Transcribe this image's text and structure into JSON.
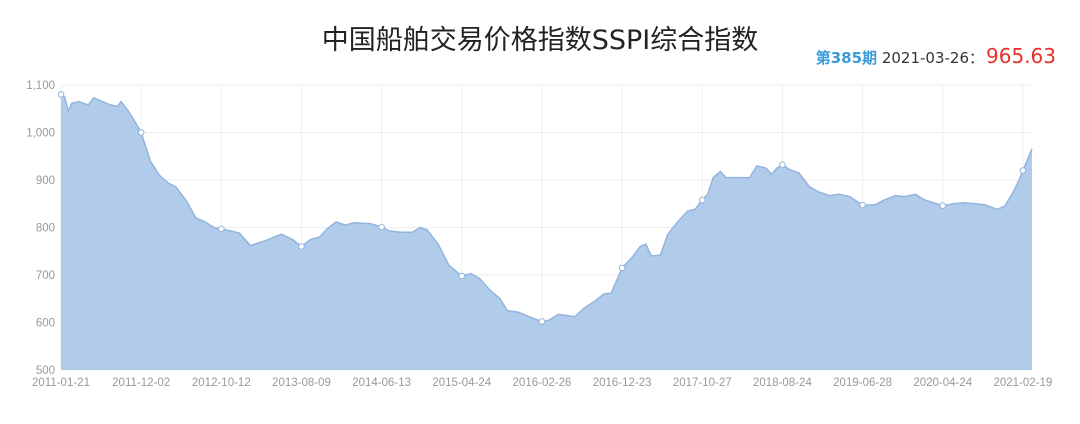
{
  "title": "中国船舶交易价格指数SSPI综合指数",
  "latest": {
    "period_label": "第385期",
    "date": "2021-03-26：",
    "value": "965.63"
  },
  "colors": {
    "area": "#b1cbeb",
    "line": "#93b4df",
    "period": "#3a9ad9",
    "value": "#e8302a"
  },
  "chart_data": {
    "type": "area",
    "title": "中国船舶交易价格指数SSPI综合指数",
    "ylim": [
      500,
      1100
    ],
    "yticks": [
      500,
      600,
      700,
      800,
      900,
      1000,
      1100
    ],
    "ytick_labels": [
      "500",
      "600",
      "700",
      "800",
      "900",
      "1,000",
      "1,100"
    ],
    "grid": true,
    "xticks": [
      {
        "i": 0,
        "label": "2011-01-21"
      },
      {
        "i": 44,
        "label": "2011-12-02"
      },
      {
        "i": 88,
        "label": "2012-10-12"
      },
      {
        "i": 132,
        "label": "2013-08-09"
      },
      {
        "i": 176,
        "label": "2014-06-13"
      },
      {
        "i": 220,
        "label": "2015-04-24"
      },
      {
        "i": 264,
        "label": "2016-02-26"
      },
      {
        "i": 308,
        "label": "2016-12-23"
      },
      {
        "i": 352,
        "label": "2017-10-27"
      },
      {
        "i": 396,
        "label": "2018-08-24"
      },
      {
        "i": 440,
        "label": "2019-06-28"
      },
      {
        "i": 484,
        "label": "2020-04-24"
      },
      {
        "i": 528,
        "label": "2021-02-19"
      }
    ],
    "x_last": 533,
    "points": [
      [
        0,
        1080
      ],
      [
        2,
        1075
      ],
      [
        4,
        1045
      ],
      [
        6,
        1062
      ],
      [
        10,
        1065
      ],
      [
        15,
        1058
      ],
      [
        18,
        1073
      ],
      [
        21,
        1068
      ],
      [
        27,
        1058
      ],
      [
        31,
        1055
      ],
      [
        33,
        1065
      ],
      [
        37,
        1045
      ],
      [
        41,
        1020
      ],
      [
        44,
        1000
      ],
      [
        49,
        940
      ],
      [
        54,
        910
      ],
      [
        59,
        893
      ],
      [
        63,
        886
      ],
      [
        69,
        855
      ],
      [
        74,
        820
      ],
      [
        79,
        812
      ],
      [
        84,
        800
      ],
      [
        88,
        797
      ],
      [
        93,
        793
      ],
      [
        98,
        788
      ],
      [
        104,
        762
      ],
      [
        112,
        772
      ],
      [
        121,
        786
      ],
      [
        127,
        775
      ],
      [
        132,
        760
      ],
      [
        137,
        775
      ],
      [
        142,
        780
      ],
      [
        146,
        797
      ],
      [
        151,
        812
      ],
      [
        156,
        805
      ],
      [
        161,
        810
      ],
      [
        170,
        808
      ],
      [
        176,
        801
      ],
      [
        180,
        793
      ],
      [
        186,
        790
      ],
      [
        193,
        790
      ],
      [
        197,
        800
      ],
      [
        201,
        795
      ],
      [
        207,
        765
      ],
      [
        213,
        720
      ],
      [
        220,
        698
      ],
      [
        225,
        703
      ],
      [
        230,
        692
      ],
      [
        235,
        670
      ],
      [
        241,
        650
      ],
      [
        245,
        625
      ],
      [
        251,
        622
      ],
      [
        257,
        612
      ],
      [
        264,
        602
      ],
      [
        268,
        605
      ],
      [
        273,
        617
      ],
      [
        277,
        615
      ],
      [
        282,
        612
      ],
      [
        287,
        630
      ],
      [
        293,
        645
      ],
      [
        298,
        660
      ],
      [
        302,
        662
      ],
      [
        308,
        715
      ],
      [
        313,
        735
      ],
      [
        318,
        760
      ],
      [
        321,
        765
      ],
      [
        324,
        740
      ],
      [
        329,
        742
      ],
      [
        333,
        785
      ],
      [
        338,
        810
      ],
      [
        344,
        835
      ],
      [
        348,
        838
      ],
      [
        352,
        858
      ],
      [
        355,
        870
      ],
      [
        358,
        905
      ],
      [
        362,
        918
      ],
      [
        365,
        905
      ],
      [
        372,
        905
      ],
      [
        378,
        905
      ],
      [
        382,
        930
      ],
      [
        387,
        925
      ],
      [
        390,
        912
      ],
      [
        393,
        925
      ],
      [
        396,
        932
      ],
      [
        400,
        922
      ],
      [
        405,
        915
      ],
      [
        411,
        885
      ],
      [
        416,
        875
      ],
      [
        422,
        867
      ],
      [
        427,
        870
      ],
      [
        433,
        865
      ],
      [
        440,
        847
      ],
      [
        447,
        848
      ],
      [
        452,
        858
      ],
      [
        458,
        867
      ],
      [
        463,
        865
      ],
      [
        469,
        870
      ],
      [
        474,
        858
      ],
      [
        484,
        846
      ],
      [
        490,
        850
      ],
      [
        496,
        852
      ],
      [
        507,
        848
      ],
      [
        514,
        838
      ],
      [
        518,
        845
      ],
      [
        522,
        870
      ],
      [
        526,
        900
      ],
      [
        528,
        920
      ],
      [
        533,
        965.63
      ]
    ]
  }
}
